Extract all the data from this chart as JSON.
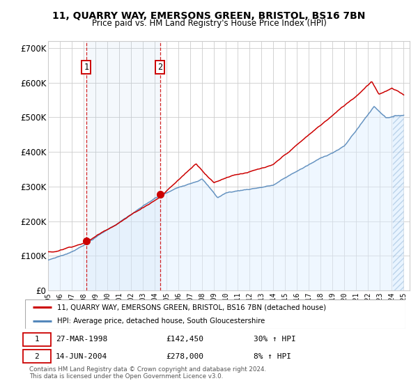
{
  "title_line1": "11, QUARRY WAY, EMERSONS GREEN, BRISTOL, BS16 7BN",
  "title_line2": "Price paid vs. HM Land Registry's House Price Index (HPI)",
  "xlim_start": 1995.0,
  "xlim_end": 2025.5,
  "ylim_bottom": 0,
  "ylim_top": 720000,
  "yticks": [
    0,
    100000,
    200000,
    300000,
    400000,
    500000,
    600000,
    700000
  ],
  "ytick_labels": [
    "£0",
    "£100K",
    "£200K",
    "£300K",
    "£400K",
    "£500K",
    "£600K",
    "£700K"
  ],
  "sale1_date_num": 1998.23,
  "sale1_price": 142450,
  "sale2_date_num": 2004.45,
  "sale2_price": 278000,
  "legend_line1": "11, QUARRY WAY, EMERSONS GREEN, BRISTOL, BS16 7BN (detached house)",
  "legend_line2": "HPI: Average price, detached house, South Gloucestershire",
  "footer": "Contains HM Land Registry data © Crown copyright and database right 2024.\nThis data is licensed under the Open Government Licence v3.0.",
  "line_color_red": "#cc0000",
  "line_color_blue": "#5588bb",
  "fill_color_blue": "#ddeeff",
  "grid_color": "#cccccc",
  "dashed_line_color": "#cc0000"
}
